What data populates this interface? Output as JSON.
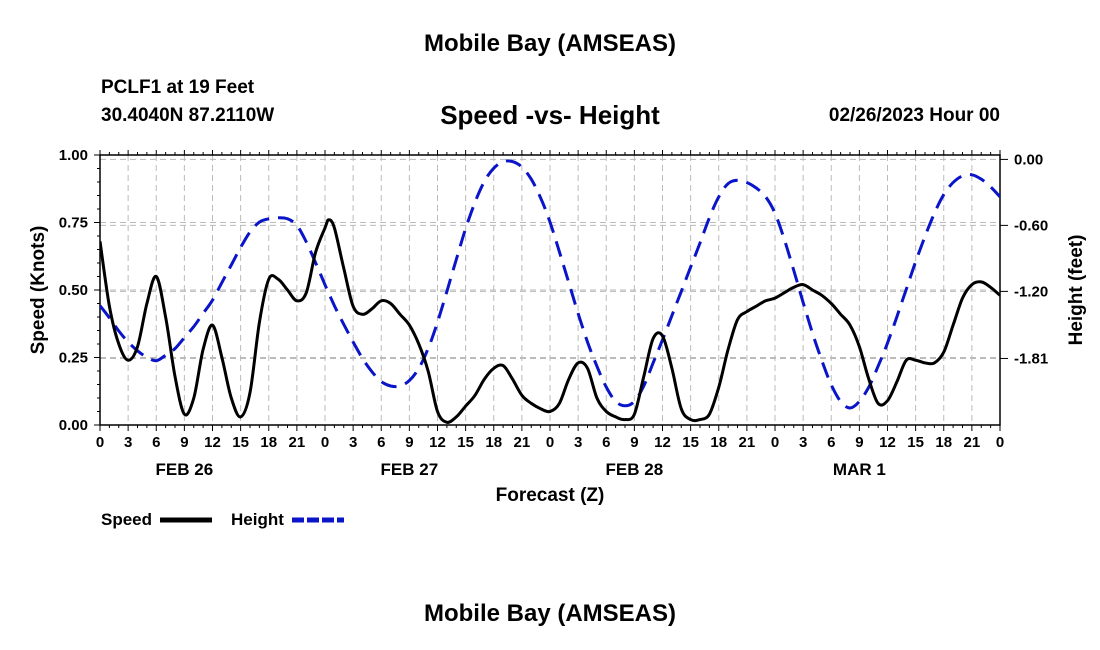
{
  "header": {
    "title": "Mobile Bay (AMSEAS)",
    "station": "PCLF1 at 19 Feet",
    "coords": "30.4040N  87.2110W",
    "subtitle": "Speed -vs- Height",
    "datetime": "02/26/2023 Hour 00"
  },
  "footer": {
    "title": "Mobile Bay (AMSEAS)"
  },
  "colors": {
    "speed": "#000000",
    "height": "#0a14c8",
    "grid": "#bbbbbb"
  },
  "chart_data": {
    "type": "line",
    "xlabel": "Forecast (Z)",
    "ylabel": "Speed (Knots)",
    "ylabel_right": "Height (feet)",
    "x_range_hours": [
      0,
      96
    ],
    "x_tick_labels": [
      "0",
      "3",
      "6",
      "9",
      "12",
      "15",
      "18",
      "21",
      "0",
      "3",
      "6",
      "9",
      "12",
      "15",
      "18",
      "21",
      "0",
      "3",
      "6",
      "9",
      "12",
      "15",
      "18",
      "21",
      "0",
      "3",
      "6",
      "9",
      "12",
      "15",
      "18",
      "21",
      "0"
    ],
    "date_labels": [
      {
        "label": "FEB 26",
        "hour": 9
      },
      {
        "label": "FEB 27",
        "hour": 33
      },
      {
        "label": "FEB 28",
        "hour": 57
      },
      {
        "label": "MAR 1",
        "hour": 81
      }
    ],
    "y_left": {
      "range": [
        0,
        1.0
      ],
      "ticks": [
        "0.00",
        "0.25",
        "0.50",
        "0.75",
        "1.00"
      ]
    },
    "y_right": {
      "range": [
        -2.415,
        0.04
      ],
      "ticks": [
        "0.00",
        "-0.60",
        "-1.20",
        "-1.81"
      ],
      "tick_values": [
        0.0,
        -0.6,
        -1.2,
        -1.81
      ]
    },
    "grid": true,
    "legend": {
      "placement": "bottom-left"
    },
    "series": [
      {
        "name": "Speed",
        "axis": "left",
        "style": "solid",
        "points": [
          [
            0,
            0.68
          ],
          [
            1,
            0.44
          ],
          [
            2,
            0.3
          ],
          [
            3,
            0.24
          ],
          [
            4,
            0.29
          ],
          [
            5,
            0.45
          ],
          [
            6,
            0.55
          ],
          [
            7,
            0.4
          ],
          [
            8,
            0.18
          ],
          [
            9,
            0.04
          ],
          [
            10,
            0.1
          ],
          [
            11,
            0.28
          ],
          [
            12,
            0.37
          ],
          [
            13,
            0.25
          ],
          [
            14,
            0.1
          ],
          [
            15,
            0.03
          ],
          [
            16,
            0.12
          ],
          [
            17,
            0.38
          ],
          [
            18,
            0.54
          ],
          [
            19,
            0.54
          ],
          [
            20,
            0.5
          ],
          [
            21,
            0.46
          ],
          [
            22,
            0.49
          ],
          [
            23,
            0.64
          ],
          [
            24,
            0.73
          ],
          [
            24.4,
            0.76
          ],
          [
            25,
            0.73
          ],
          [
            26,
            0.58
          ],
          [
            27,
            0.44
          ],
          [
            28,
            0.41
          ],
          [
            29,
            0.43
          ],
          [
            30,
            0.46
          ],
          [
            31,
            0.45
          ],
          [
            32,
            0.41
          ],
          [
            33,
            0.37
          ],
          [
            34,
            0.3
          ],
          [
            35,
            0.2
          ],
          [
            36,
            0.05
          ],
          [
            37,
            0.01
          ],
          [
            38,
            0.03
          ],
          [
            39,
            0.07
          ],
          [
            40,
            0.11
          ],
          [
            41,
            0.17
          ],
          [
            42,
            0.21
          ],
          [
            43,
            0.22
          ],
          [
            44,
            0.17
          ],
          [
            45,
            0.11
          ],
          [
            46,
            0.08
          ],
          [
            47,
            0.06
          ],
          [
            48,
            0.05
          ],
          [
            49,
            0.08
          ],
          [
            50,
            0.17
          ],
          [
            51,
            0.23
          ],
          [
            52,
            0.21
          ],
          [
            53,
            0.1
          ],
          [
            54,
            0.05
          ],
          [
            55,
            0.03
          ],
          [
            56,
            0.02
          ],
          [
            57,
            0.04
          ],
          [
            58,
            0.18
          ],
          [
            59,
            0.32
          ],
          [
            60,
            0.33
          ],
          [
            61,
            0.21
          ],
          [
            62,
            0.06
          ],
          [
            63,
            0.02
          ],
          [
            64,
            0.02
          ],
          [
            65,
            0.04
          ],
          [
            66,
            0.14
          ],
          [
            67,
            0.28
          ],
          [
            68,
            0.39
          ],
          [
            69,
            0.42
          ],
          [
            70,
            0.44
          ],
          [
            71,
            0.46
          ],
          [
            72,
            0.47
          ],
          [
            73,
            0.49
          ],
          [
            74,
            0.51
          ],
          [
            75,
            0.52
          ],
          [
            76,
            0.5
          ],
          [
            77,
            0.48
          ],
          [
            78,
            0.45
          ],
          [
            79,
            0.41
          ],
          [
            80,
            0.37
          ],
          [
            81,
            0.29
          ],
          [
            82,
            0.17
          ],
          [
            83,
            0.08
          ],
          [
            84,
            0.09
          ],
          [
            85,
            0.16
          ],
          [
            86,
            0.24
          ],
          [
            87,
            0.24
          ],
          [
            88,
            0.23
          ],
          [
            89,
            0.23
          ],
          [
            90,
            0.27
          ],
          [
            91,
            0.37
          ],
          [
            92,
            0.47
          ],
          [
            93,
            0.52
          ],
          [
            94,
            0.53
          ],
          [
            95,
            0.51
          ],
          [
            96,
            0.48
          ]
        ]
      },
      {
        "name": "Height",
        "axis": "right",
        "style": "dashed",
        "points": [
          [
            0,
            -1.33
          ],
          [
            1,
            -1.44
          ],
          [
            2,
            -1.56
          ],
          [
            3,
            -1.66
          ],
          [
            4,
            -1.74
          ],
          [
            5,
            -1.8
          ],
          [
            6,
            -1.83
          ],
          [
            7,
            -1.78
          ],
          [
            8,
            -1.72
          ],
          [
            9,
            -1.62
          ],
          [
            10,
            -1.52
          ],
          [
            11,
            -1.4
          ],
          [
            12,
            -1.28
          ],
          [
            13,
            -1.12
          ],
          [
            14,
            -0.96
          ],
          [
            15,
            -0.8
          ],
          [
            16,
            -0.66
          ],
          [
            17,
            -0.57
          ],
          [
            18,
            -0.54
          ],
          [
            19,
            -0.53
          ],
          [
            20,
            -0.54
          ],
          [
            21,
            -0.6
          ],
          [
            22,
            -0.75
          ],
          [
            23,
            -0.94
          ],
          [
            24,
            -1.14
          ],
          [
            25,
            -1.33
          ],
          [
            26,
            -1.5
          ],
          [
            27,
            -1.66
          ],
          [
            28,
            -1.81
          ],
          [
            29,
            -1.93
          ],
          [
            30,
            -2.02
          ],
          [
            31,
            -2.06
          ],
          [
            32,
            -2.06
          ],
          [
            33,
            -2.01
          ],
          [
            34,
            -1.9
          ],
          [
            35,
            -1.72
          ],
          [
            36,
            -1.48
          ],
          [
            37,
            -1.2
          ],
          [
            38,
            -0.91
          ],
          [
            39,
            -0.63
          ],
          [
            40,
            -0.39
          ],
          [
            41,
            -0.2
          ],
          [
            42,
            -0.08
          ],
          [
            43,
            -0.02
          ],
          [
            44,
            -0.02
          ],
          [
            45,
            -0.07
          ],
          [
            46,
            -0.18
          ],
          [
            47,
            -0.35
          ],
          [
            48,
            -0.57
          ],
          [
            49,
            -0.84
          ],
          [
            50,
            -1.12
          ],
          [
            51,
            -1.4
          ],
          [
            52,
            -1.66
          ],
          [
            53,
            -1.88
          ],
          [
            54,
            -2.07
          ],
          [
            55,
            -2.2
          ],
          [
            56,
            -2.24
          ],
          [
            57,
            -2.2
          ],
          [
            58,
            -2.06
          ],
          [
            59,
            -1.85
          ],
          [
            60,
            -1.64
          ],
          [
            61,
            -1.42
          ],
          [
            62,
            -1.2
          ],
          [
            63,
            -0.98
          ],
          [
            64,
            -0.76
          ],
          [
            65,
            -0.53
          ],
          [
            66,
            -0.34
          ],
          [
            67,
            -0.22
          ],
          [
            68,
            -0.19
          ],
          [
            69,
            -0.21
          ],
          [
            70,
            -0.26
          ],
          [
            71,
            -0.34
          ],
          [
            72,
            -0.49
          ],
          [
            73,
            -0.73
          ],
          [
            74,
            -1.01
          ],
          [
            75,
            -1.3
          ],
          [
            76,
            -1.58
          ],
          [
            77,
            -1.83
          ],
          [
            78,
            -2.05
          ],
          [
            79,
            -2.2
          ],
          [
            80,
            -2.26
          ],
          [
            81,
            -2.2
          ],
          [
            82,
            -2.07
          ],
          [
            83,
            -1.88
          ],
          [
            84,
            -1.67
          ],
          [
            85,
            -1.43
          ],
          [
            86,
            -1.18
          ],
          [
            87,
            -0.93
          ],
          [
            88,
            -0.7
          ],
          [
            89,
            -0.49
          ],
          [
            90,
            -0.32
          ],
          [
            91,
            -0.21
          ],
          [
            92,
            -0.15
          ],
          [
            93,
            -0.14
          ],
          [
            94,
            -0.18
          ],
          [
            95,
            -0.25
          ],
          [
            96,
            -0.34
          ]
        ]
      }
    ]
  }
}
